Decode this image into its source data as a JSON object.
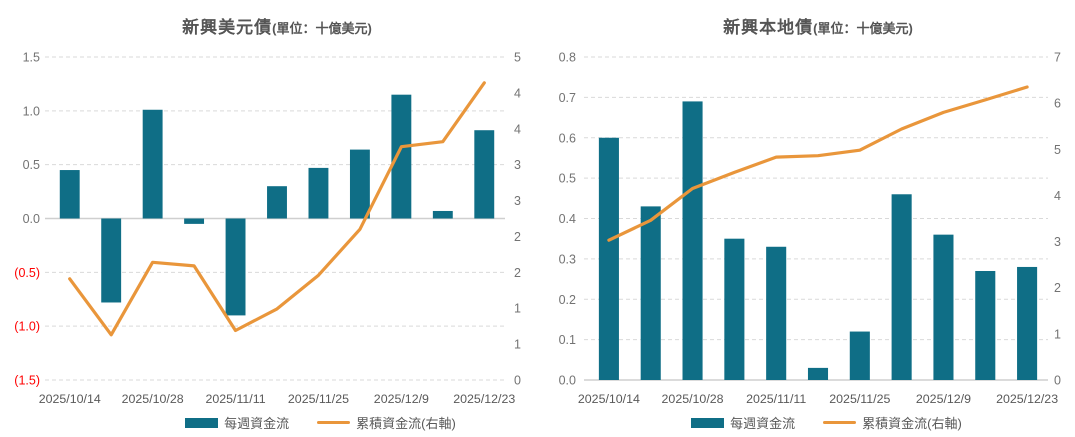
{
  "colors": {
    "bar": "#0f6e86",
    "line": "#e9963b",
    "grid": "#d9d9d9",
    "zero_line": "#cfcfcf",
    "tick_text": "#737373",
    "negative_tick_text": "#ff0000",
    "date_text": "#595959",
    "title_text": "#555555",
    "legend_text": "#595959"
  },
  "chart_data": [
    {
      "type": "combo-bar-line",
      "title": "新興美元債",
      "unit": "(單位：十億美元)",
      "x_tick_labels": [
        "2025/10/14",
        "2025/10/28",
        "2025/11/11",
        "2025/11/25",
        "2025/12/9",
        "2025/12/23"
      ],
      "x_tick_step": 2,
      "bar_series": {
        "name": "每週資金流",
        "axis": "left",
        "values": [
          0.45,
          -0.78,
          1.01,
          -0.05,
          -0.9,
          0.3,
          0.47,
          0.64,
          1.15,
          0.07,
          0.82
        ]
      },
      "line_series": {
        "name": "累積資金流(右軸)",
        "axis": "right",
        "values": [
          1.41,
          0.63,
          1.64,
          1.59,
          0.69,
          0.99,
          1.46,
          2.1,
          3.25,
          3.32,
          4.14
        ]
      },
      "left_axis": {
        "min": -1.5,
        "max": 1.5,
        "tick_labels": [
          "1.5",
          "1.0",
          "0.5",
          "0.0",
          "(0.5)",
          "(1.0)",
          "(1.5)"
        ]
      },
      "right_axis": {
        "min": 0,
        "max": 4.5,
        "tick_labels": [
          "5",
          "4",
          "4",
          "3",
          "3",
          "2",
          "2",
          "1",
          "1",
          "0"
        ]
      },
      "grid": "horizontal-dashed",
      "legend_position": "bottom"
    },
    {
      "type": "combo-bar-line",
      "title": "新興本地債",
      "unit": "(單位：十億美元)",
      "x_tick_labels": [
        "2025/10/14",
        "2025/10/28",
        "2025/11/11",
        "2025/11/25",
        "2025/12/9",
        "2025/12/23"
      ],
      "x_tick_step": 2,
      "bar_series": {
        "name": "每週資金流",
        "axis": "left",
        "values": [
          0.6,
          0.43,
          0.69,
          0.35,
          0.33,
          0.03,
          0.12,
          0.46,
          0.36,
          0.27,
          0.28
        ]
      },
      "line_series": {
        "name": "累積資金流(右軸)",
        "axis": "right",
        "values": [
          3.03,
          3.46,
          4.15,
          4.5,
          4.83,
          4.86,
          4.98,
          5.44,
          5.8,
          6.07,
          6.35
        ]
      },
      "left_axis": {
        "min": 0,
        "max": 0.8,
        "tick_labels": [
          "0.8",
          "0.7",
          "0.6",
          "0.5",
          "0.4",
          "0.3",
          "0.2",
          "0.1",
          "0.0"
        ]
      },
      "right_axis": {
        "min": 0,
        "max": 7,
        "tick_labels": [
          "7",
          "6",
          "5",
          "4",
          "3",
          "2",
          "1",
          "0"
        ]
      },
      "grid": "horizontal-dashed",
      "legend_position": "bottom"
    }
  ]
}
